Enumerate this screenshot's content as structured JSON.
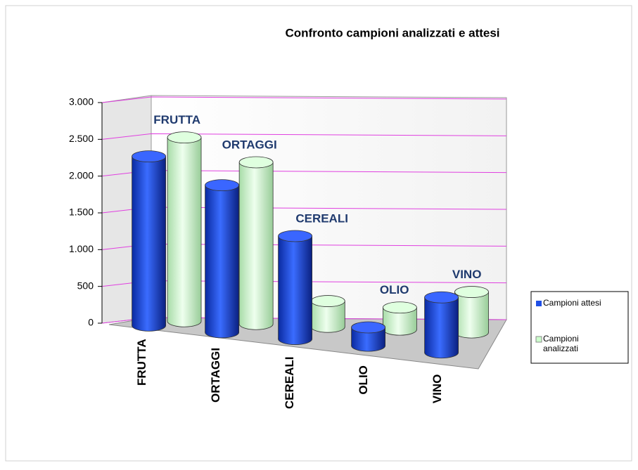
{
  "chart_data": {
    "type": "bar3d",
    "title": "Confronto campioni analizzati e attesi",
    "categories": [
      "FRUTTA",
      "ORTAGGI",
      "CEREALI",
      "OLIO",
      "VINO"
    ],
    "series": [
      {
        "name": "Campioni attesi",
        "color": "#1f4fe6",
        "values": [
          2300,
          2000,
          1400,
          250,
          750
        ]
      },
      {
        "name": "Campioni analizzati",
        "color": "#ccffcc",
        "values": [
          2500,
          2200,
          350,
          300,
          550
        ]
      }
    ],
    "ylim": [
      0,
      3000
    ],
    "yticks": [
      0,
      500,
      {
        "value": 1000,
        "label": "1.000"
      },
      {
        "value": 1500,
        "label": "1.500"
      },
      {
        "value": 2000,
        "label": "2.000"
      },
      {
        "value": 2500,
        "label": "2.500"
      },
      {
        "value": 3000,
        "label": "3.000"
      }
    ],
    "grid": true,
    "grid_color": "#e040e0",
    "label_color": "#1f3a6e"
  }
}
